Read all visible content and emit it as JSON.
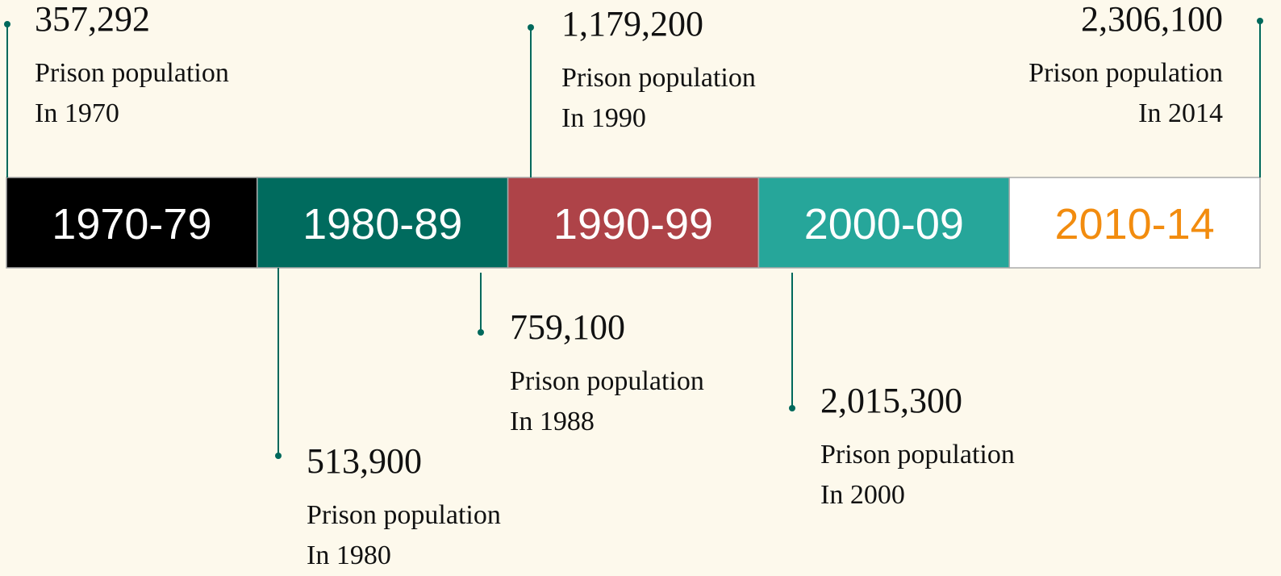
{
  "segments": [
    {
      "label": "1970-79",
      "color": "#000000",
      "text_color": "#ffffff"
    },
    {
      "label": "1980-89",
      "color": "#006b5e",
      "text_color": "#ffffff"
    },
    {
      "label": "1990-99",
      "color": "#ae4348",
      "text_color": "#ffffff"
    },
    {
      "label": "2000-09",
      "color": "#26a69a",
      "text_color": "#ffffff"
    },
    {
      "label": "2010-14",
      "color": "#ffffff",
      "text_color": "#f28c0f"
    }
  ],
  "annotations": [
    {
      "value": "357,292",
      "caption": "Prison population",
      "year": "In 1970"
    },
    {
      "value": "513,900",
      "caption": "Prison population",
      "year": "In 1980"
    },
    {
      "value": "759,100",
      "caption": "Prison population",
      "year": "In 1988"
    },
    {
      "value": "1,179,200",
      "caption": "Prison population",
      "year": "In 1990"
    },
    {
      "value": "2,015,300",
      "caption": "Prison population",
      "year": "In 2000"
    },
    {
      "value": "2,306,100",
      "caption": "Prison population",
      "year": "In 2014"
    }
  ]
}
